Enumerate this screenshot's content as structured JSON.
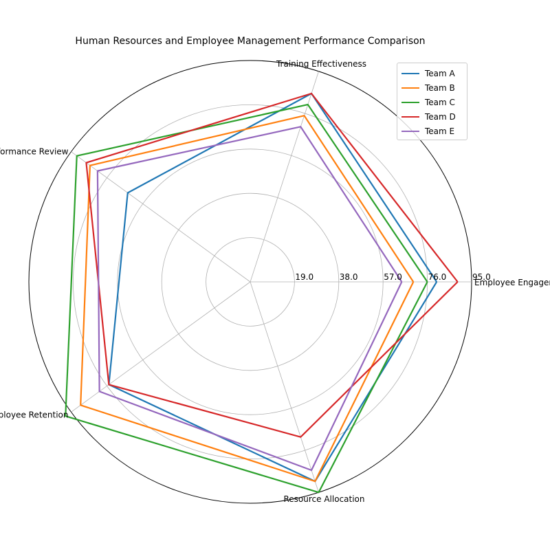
{
  "chart_data": {
    "type": "radar",
    "title": "Human Resources and Employee Management Performance Comparison",
    "categories": [
      "Employee Engagement",
      "Training Effectiveness",
      "Performance Review",
      "Employee Retention",
      "Resource Allocation"
    ],
    "radial_ticks": [
      "19.0",
      "38.0",
      "57.0",
      "76.0",
      "95.0"
    ],
    "rlim": [
      0,
      95
    ],
    "grid": true,
    "legend_position": "top-right",
    "series": [
      {
        "name": "Team A",
        "color": "#1f77b4",
        "values": [
          80,
          85,
          65,
          75,
          90
        ]
      },
      {
        "name": "Team B",
        "color": "#ff7f0e",
        "values": [
          70,
          75,
          85,
          90,
          90
        ]
      },
      {
        "name": "Team C",
        "color": "#2ca02c",
        "values": [
          76,
          80,
          92,
          98,
          95
        ]
      },
      {
        "name": "Team D",
        "color": "#d62728",
        "values": [
          89,
          85,
          87,
          75,
          70
        ]
      },
      {
        "name": "Team E",
        "color": "#9467bd",
        "values": [
          65,
          70,
          81,
          80,
          85
        ]
      }
    ]
  }
}
